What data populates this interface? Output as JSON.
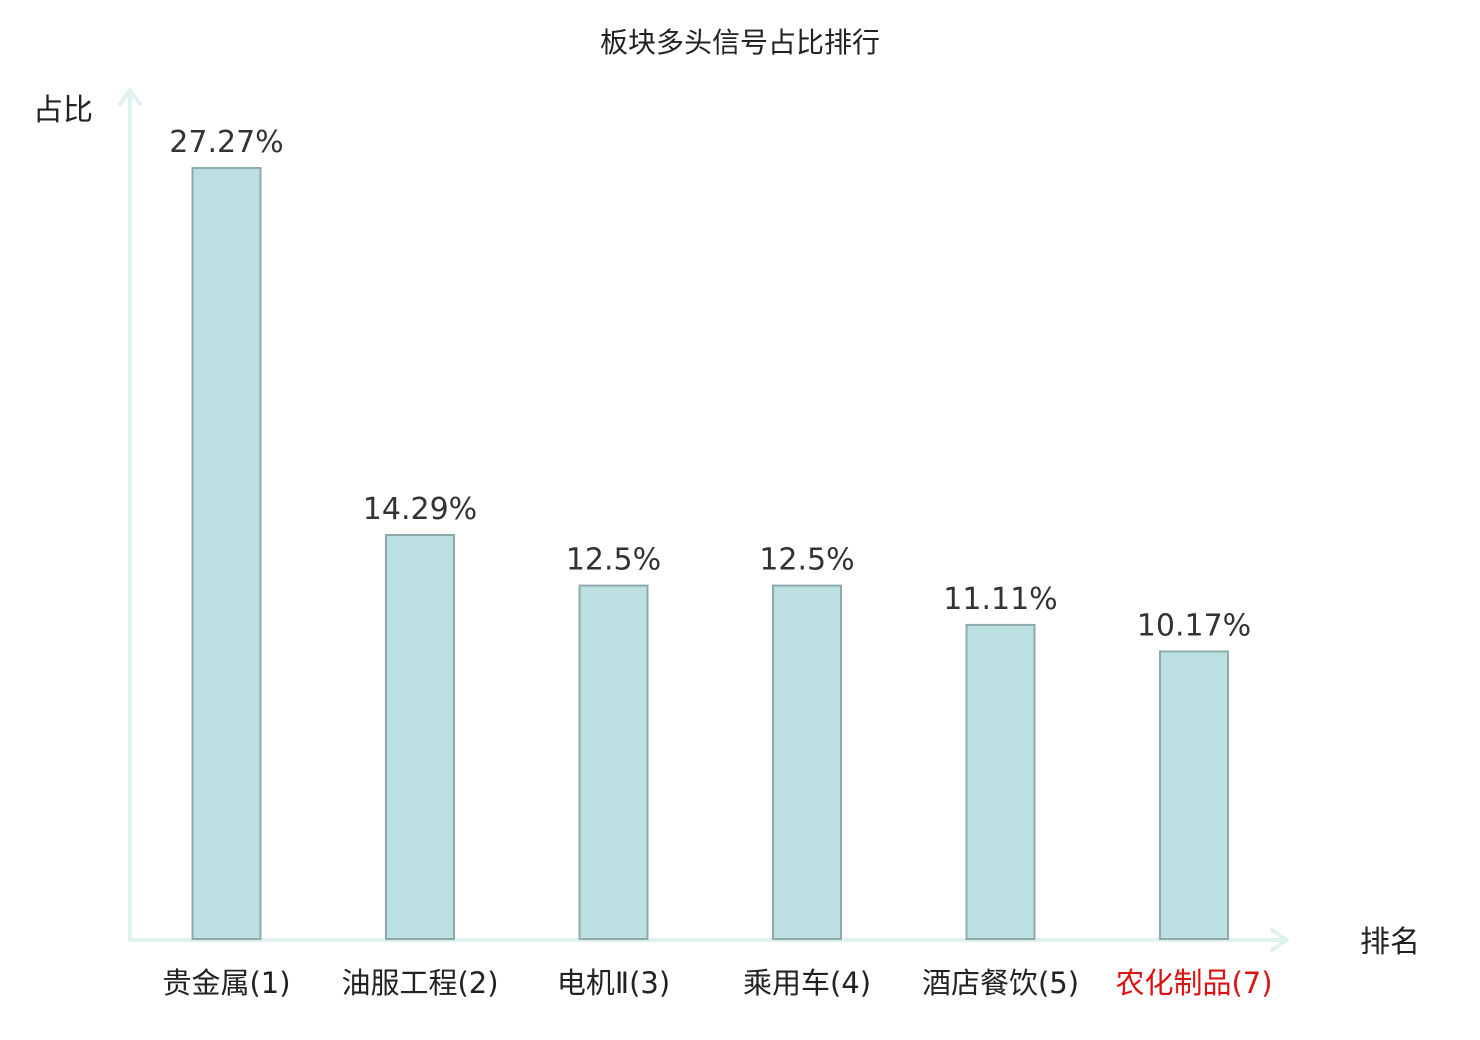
{
  "chart_data": {
    "type": "bar",
    "title": "板块多头信号占比排行",
    "ylabel": "占比",
    "xlabel": "排名",
    "categories": [
      "贵金属(1)",
      "油服工程(2)",
      "电机Ⅱ(3)",
      "乘用车(4)",
      "酒店餐饮(5)",
      "农化制品(7)"
    ],
    "values": [
      27.27,
      14.29,
      12.5,
      12.5,
      11.11,
      10.17
    ],
    "value_labels": [
      "27.27%",
      "14.29%",
      "12.5%",
      "12.5%",
      "11.11%",
      "10.17%"
    ],
    "highlight_index": 5,
    "ylim": [
      0,
      27.27
    ],
    "grid": false,
    "colors": {
      "bar_fill": "#bce0e2",
      "bar_stroke": "#8fa9aa",
      "axis": "#e0f2ef",
      "highlight_text": "#dd1111"
    }
  }
}
